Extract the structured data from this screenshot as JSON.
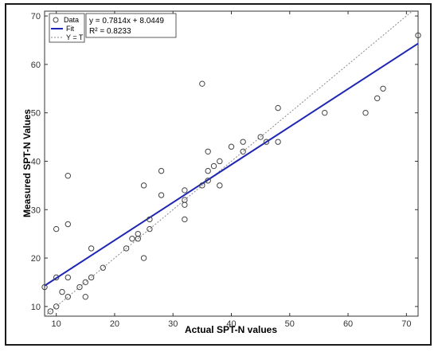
{
  "chart_data": {
    "type": "scatter",
    "xlabel": "Actual SPT-N values",
    "ylabel": "Measured SPT-N Values",
    "xlim": [
      8,
      72
    ],
    "ylim": [
      8,
      71
    ],
    "x_ticks": [
      "10",
      "20",
      "30",
      "40",
      "50",
      "60",
      "70"
    ],
    "y_ticks": [
      "10",
      "20",
      "30",
      "40",
      "50",
      "60",
      "70"
    ],
    "grid": false,
    "legend_position": "top-left",
    "legend": [
      "Data",
      "Fit",
      "Y = T"
    ],
    "annotation": {
      "equation": "y = 0.7814x + 8.0449",
      "r_squared": "R² = 0.8233"
    },
    "fit": {
      "slope": 0.7814,
      "intercept": 8.0449,
      "color": "#1f27b4"
    },
    "identity_line_color": "#8a8a8a",
    "marker_color": "#444444",
    "series": [
      {
        "name": "Data",
        "points": [
          [
            8,
            14
          ],
          [
            9,
            9
          ],
          [
            10,
            10
          ],
          [
            10,
            16
          ],
          [
            10,
            26
          ],
          [
            11,
            13
          ],
          [
            12,
            12
          ],
          [
            12,
            16
          ],
          [
            12,
            27
          ],
          [
            12,
            37
          ],
          [
            14,
            14
          ],
          [
            15,
            12
          ],
          [
            15,
            15
          ],
          [
            16,
            16
          ],
          [
            16,
            22
          ],
          [
            18,
            18
          ],
          [
            22,
            22
          ],
          [
            23,
            24
          ],
          [
            24,
            24
          ],
          [
            24,
            25
          ],
          [
            25,
            20
          ],
          [
            25,
            35
          ],
          [
            26,
            26
          ],
          [
            26,
            28
          ],
          [
            28,
            33
          ],
          [
            28,
            38
          ],
          [
            32,
            28
          ],
          [
            32,
            31
          ],
          [
            32,
            32
          ],
          [
            32,
            34
          ],
          [
            35,
            35
          ],
          [
            35,
            56
          ],
          [
            36,
            36
          ],
          [
            36,
            38
          ],
          [
            36,
            42
          ],
          [
            37,
            39
          ],
          [
            38,
            35
          ],
          [
            38,
            40
          ],
          [
            40,
            43
          ],
          [
            42,
            42
          ],
          [
            42,
            44
          ],
          [
            45,
            45
          ],
          [
            46,
            44
          ],
          [
            48,
            44
          ],
          [
            48,
            51
          ],
          [
            56,
            50
          ],
          [
            63,
            50
          ],
          [
            65,
            53
          ],
          [
            66,
            55
          ],
          [
            72,
            66
          ]
        ]
      }
    ]
  }
}
